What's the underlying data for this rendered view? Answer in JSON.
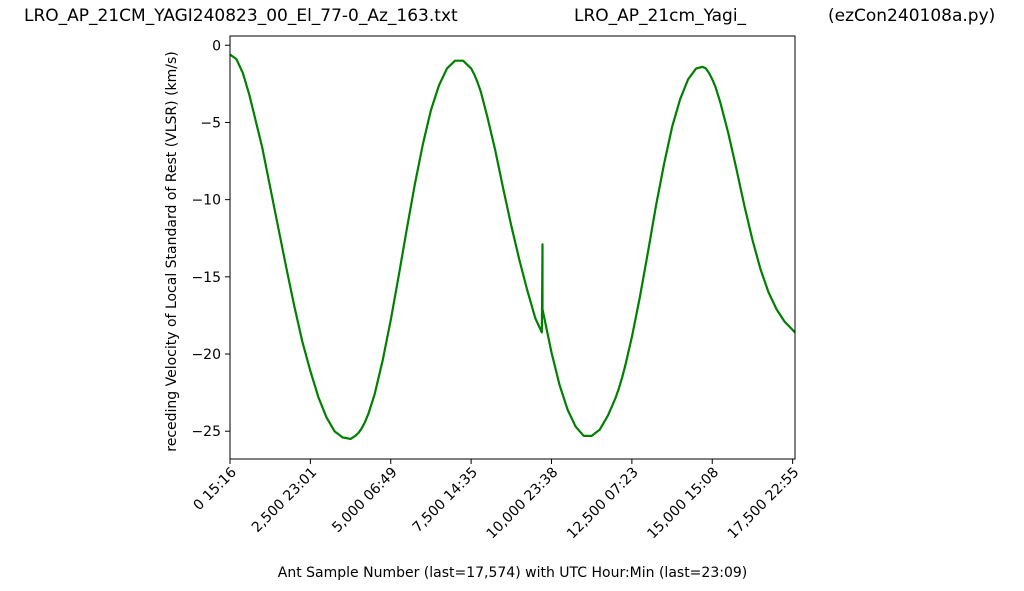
{
  "header": {
    "left": "LRO_AP_21CM_YAGI240823_00_El_77-0_Az_163.txt",
    "center": "LRO_AP_21cm_Yagi_",
    "right": "(ezCon240108a.py)"
  },
  "chart_data": {
    "type": "line",
    "title": "",
    "xlabel": "Ant Sample Number (last=17,574) with UTC Hour:Min (last=23:09)",
    "ylabel": "receding Velocity of Local Standard of Rest (VLSR) (km/s)",
    "xlim": [
      0,
      17574
    ],
    "ylim": [
      -26.8,
      0.6
    ],
    "xticks": [
      {
        "value": 0,
        "label": "0  15:16"
      },
      {
        "value": 2500,
        "label": "2,500  23:01"
      },
      {
        "value": 5000,
        "label": "5,000  06:49"
      },
      {
        "value": 7500,
        "label": "7,500  14:35"
      },
      {
        "value": 10000,
        "label": "10,000  23:38"
      },
      {
        "value": 12500,
        "label": "12,500  07:23"
      },
      {
        "value": 15000,
        "label": "15,000  15:08"
      },
      {
        "value": 17500,
        "label": "17,500  22:55"
      }
    ],
    "yticks": [
      {
        "value": 0,
        "label": "0"
      },
      {
        "value": -5,
        "label": "−5"
      },
      {
        "value": -10,
        "label": "−10"
      },
      {
        "value": -15,
        "label": "−15"
      },
      {
        "value": -20,
        "label": "−20"
      },
      {
        "value": -25,
        "label": "−25"
      }
    ],
    "grid": false,
    "line_color": "#008000",
    "series": [
      {
        "x": [
          0,
          200,
          400,
          600,
          800,
          1000,
          1250,
          1500,
          1750,
          2000,
          2250,
          2500,
          2750,
          3000,
          3250,
          3500,
          3750,
          3900,
          4000,
          4100,
          4200,
          4300,
          4500,
          4750,
          5000,
          5250,
          5500,
          5750,
          6000,
          6250,
          6500,
          6750,
          7000,
          7250,
          7500,
          7600,
          7700,
          7800,
          7900,
          8000,
          8250,
          8500,
          8750,
          9000,
          9250,
          9500,
          9700,
          9720,
          9720,
          9800,
          10000,
          10250,
          10500,
          10750,
          11000,
          11250,
          11500,
          11750,
          11900,
          12000,
          12100,
          12200,
          12300,
          12500,
          12750,
          13000,
          13250,
          13500,
          13750,
          14000,
          14250,
          14500,
          14700,
          14800,
          14900,
          15000,
          15100,
          15250,
          15500,
          15750,
          16000,
          16250,
          16500,
          16750,
          17000,
          17250,
          17574
        ],
        "y": [
          -0.6,
          -0.9,
          -1.8,
          -3.2,
          -4.9,
          -6.6,
          -9.2,
          -11.8,
          -14.4,
          -16.9,
          -19.2,
          -21.1,
          -22.8,
          -24.1,
          -25.0,
          -25.4,
          -25.5,
          -25.3,
          -25.1,
          -24.8,
          -24.4,
          -23.9,
          -22.6,
          -20.4,
          -17.8,
          -14.9,
          -11.9,
          -9.0,
          -6.4,
          -4.2,
          -2.6,
          -1.5,
          -1.0,
          -1.0,
          -1.5,
          -1.9,
          -2.4,
          -3.0,
          -3.8,
          -4.6,
          -6.8,
          -9.3,
          -11.7,
          -13.9,
          -15.9,
          -17.7,
          -18.6,
          -12.9,
          -17.1,
          -17.9,
          -19.9,
          -22.0,
          -23.6,
          -24.7,
          -25.3,
          -25.3,
          -24.9,
          -24.0,
          -23.3,
          -22.8,
          -22.2,
          -21.5,
          -20.7,
          -18.9,
          -16.3,
          -13.4,
          -10.4,
          -7.7,
          -5.3,
          -3.5,
          -2.2,
          -1.5,
          -1.4,
          -1.5,
          -1.8,
          -2.2,
          -2.7,
          -3.7,
          -5.7,
          -8.0,
          -10.4,
          -12.6,
          -14.5,
          -16.0,
          -17.1,
          -17.9,
          -18.6
        ]
      }
    ]
  }
}
